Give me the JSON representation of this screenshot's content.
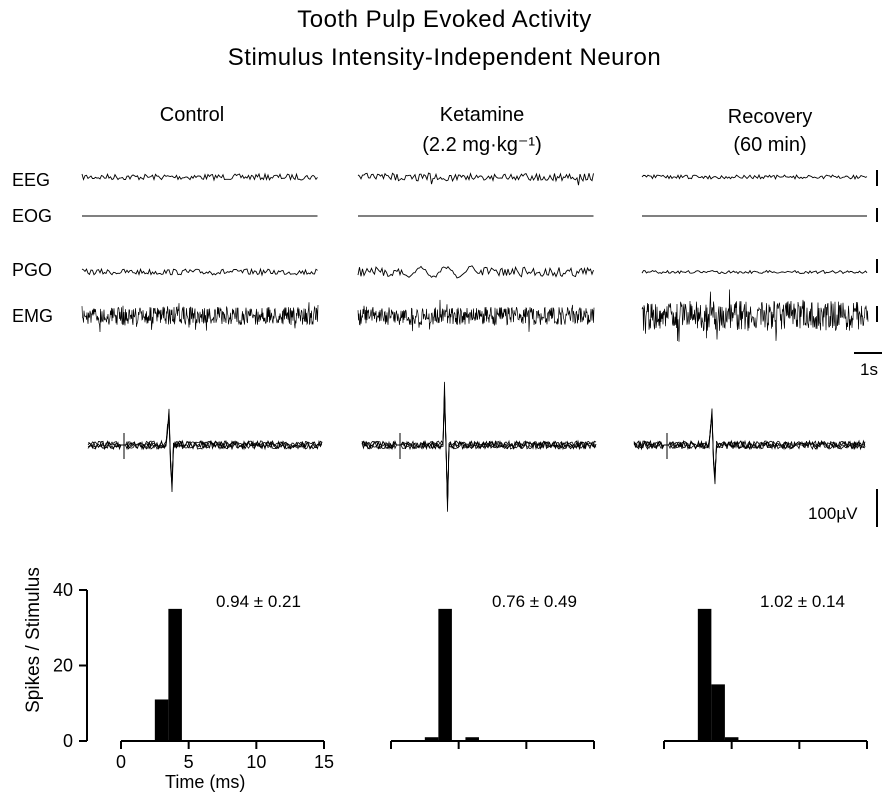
{
  "title_line1": "Tooth Pulp Evoked Activity",
  "title_line2": "Stimulus Intensity-Independent Neuron",
  "columns": [
    {
      "label": "Control",
      "sub": ""
    },
    {
      "label": "Ketamine",
      "sub": "(2.2 mg·kg⁻¹)"
    },
    {
      "label": "Recovery",
      "sub": "(60 min)"
    }
  ],
  "trace_rows": [
    "EEG",
    "EOG",
    "PGO",
    "EMG"
  ],
  "time_scale_label": "1s",
  "voltage_scale_label": "100µV",
  "chart_data": [
    {
      "type": "bar",
      "panel": "Control",
      "annotation": "0.94 ± 0.21",
      "xlabel": "Time (ms)",
      "ylabel": "Spikes  / Stimulus",
      "x_ticks": [
        0,
        5,
        10,
        15
      ],
      "y_ticks": [
        0,
        20,
        40
      ],
      "xlim": [
        0,
        15
      ],
      "ylim": [
        0,
        40
      ],
      "bins": [
        {
          "x0": 2.5,
          "x1": 3.5,
          "value": 11
        },
        {
          "x0": 3.5,
          "x1": 4.5,
          "value": 35
        }
      ]
    },
    {
      "type": "bar",
      "panel": "Ketamine",
      "annotation": "0.76 ± 0.49",
      "xlim": [
        0,
        15
      ],
      "ylim": [
        0,
        40
      ],
      "bins": [
        {
          "x0": 2.5,
          "x1": 3.5,
          "value": 1
        },
        {
          "x0": 3.5,
          "x1": 4.5,
          "value": 35
        },
        {
          "x0": 5.5,
          "x1": 6.5,
          "value": 1
        }
      ]
    },
    {
      "type": "bar",
      "panel": "Recovery",
      "annotation": "1.02 ± 0.14",
      "xlim": [
        0,
        15
      ],
      "ylim": [
        0,
        40
      ],
      "bins": [
        {
          "x0": 2.5,
          "x1": 3.5,
          "value": 35
        },
        {
          "x0": 3.5,
          "x1": 4.5,
          "value": 15
        },
        {
          "x0": 4.5,
          "x1": 5.5,
          "value": 1
        }
      ]
    }
  ]
}
